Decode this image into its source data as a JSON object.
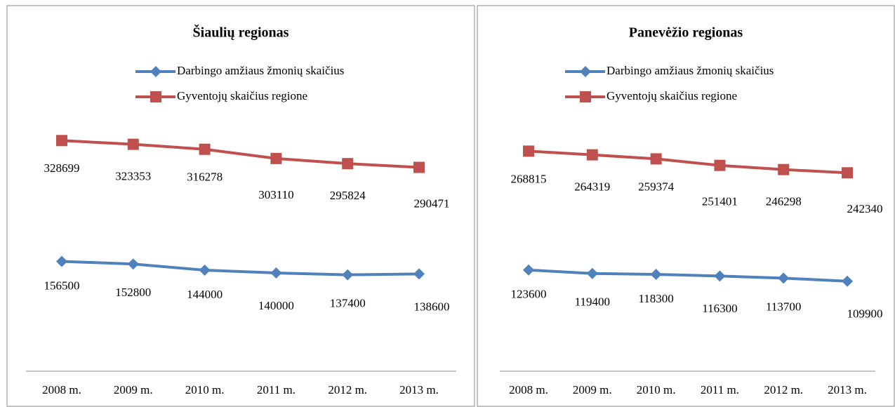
{
  "chart_data": [
    {
      "type": "line",
      "title": "Šiaulių regionas",
      "categories": [
        "2008 m.",
        "2009 m.",
        "2010 m.",
        "2011 m.",
        "2012 m.",
        "2013 m."
      ],
      "series": [
        {
          "name": "Darbingo amžiaus žmonių skaičius",
          "color": "#4f81bd",
          "values": [
            156500,
            152800,
            144000,
            140000,
            137400,
            138600
          ]
        },
        {
          "name": "Gyventojų skaičius regione",
          "color": "#c0504d",
          "values": [
            328699,
            323353,
            316278,
            303110,
            295824,
            290471
          ]
        }
      ],
      "ylim": [
        0,
        350000
      ]
    },
    {
      "type": "line",
      "title": "Panevėžio regionas",
      "categories": [
        "2008 m.",
        "2009 m.",
        "2010 m.",
        "2011 m.",
        "2012 m.",
        "2013 m."
      ],
      "series": [
        {
          "name": "Darbingo amžiaus žmonių skaičius",
          "color": "#4f81bd",
          "values": [
            123600,
            119400,
            118300,
            116300,
            113700,
            109900
          ]
        },
        {
          "name": "Gyventojų skaičius regione",
          "color": "#c0504d",
          "values": [
            268815,
            264319,
            259374,
            251401,
            246298,
            242340
          ]
        }
      ],
      "ylim": [
        0,
        300000
      ]
    }
  ]
}
